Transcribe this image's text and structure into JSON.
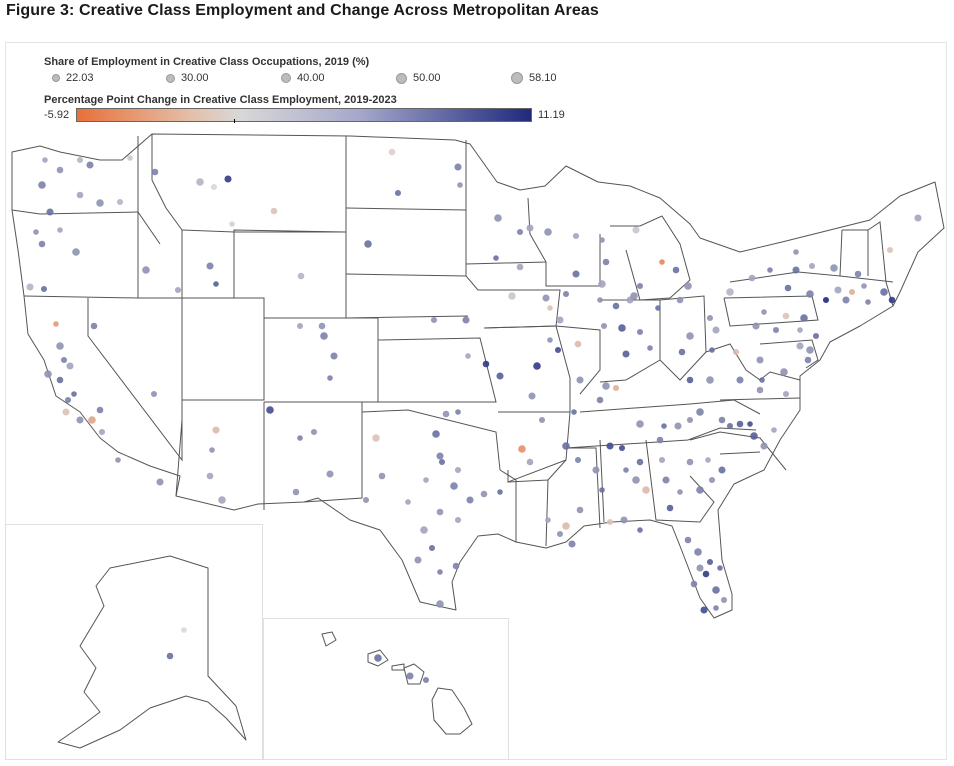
{
  "figure": {
    "title": "Figure 3: Creative Class Employment and Change Across Metropolitan Areas"
  },
  "legend": {
    "size_title": "Share of Employment in Creative Class Occupations, 2019 (%)",
    "size_items": [
      "22.03",
      "30.00",
      "40.00",
      "50.00",
      "58.10"
    ],
    "color_title": "Percentage Point Change in Creative Class Employment, 2019-2023",
    "color_min": "-5.92",
    "color_max": "11.19",
    "color_low": "#e8703a",
    "color_mid": "#d8d8d8",
    "color_high": "#1f2a7c"
  },
  "colors": {
    "state_border": "#555555",
    "inset_border": "#e0e0e0",
    "frame_border": "#e3e3e3"
  }
}
